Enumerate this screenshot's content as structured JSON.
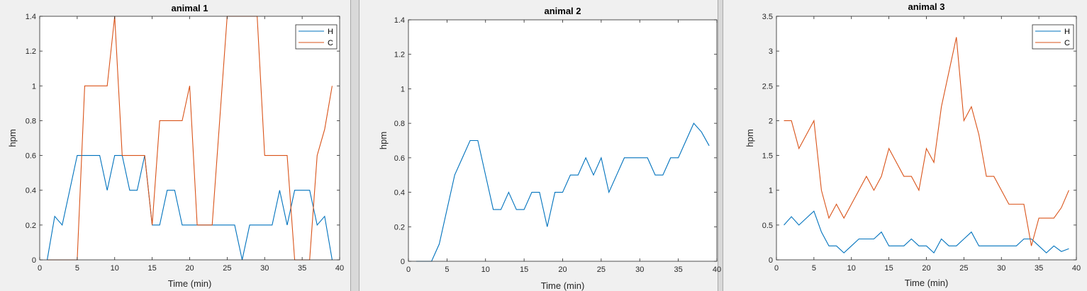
{
  "colors": {
    "H": "#0072bd",
    "C": "#d95319",
    "axis": "#262626",
    "figure_bg": "#f0f0f0",
    "axes_bg": "#ffffff"
  },
  "chart_data": [
    {
      "type": "line",
      "title": "animal 1",
      "xlabel": "Time (min)",
      "ylabel": "hpm",
      "xlim": [
        0,
        40
      ],
      "ylim": [
        0,
        1.4
      ],
      "xticks": [
        "0",
        "5",
        "10",
        "15",
        "20",
        "25",
        "30",
        "35",
        "40"
      ],
      "yticks": [
        "0",
        "0.2",
        "0.4",
        "0.6",
        "0.8",
        "1",
        "1.2",
        "1.4"
      ],
      "grid": false,
      "legend": "top-right",
      "series": [
        {
          "name": "H",
          "color": "#0072bd",
          "x": [
            1,
            2,
            3,
            4,
            5,
            6,
            7,
            8,
            9,
            10,
            11,
            12,
            13,
            14,
            15,
            16,
            17,
            18,
            19,
            20,
            21,
            22,
            23,
            24,
            25,
            26,
            27,
            28,
            29,
            30,
            31,
            32,
            33,
            34,
            35,
            36,
            37,
            38,
            39
          ],
          "values": [
            0,
            0.25,
            0.2,
            0.4,
            0.6,
            0.6,
            0.6,
            0.6,
            0.4,
            0.6,
            0.6,
            0.4,
            0.4,
            0.6,
            0.2,
            0.2,
            0.4,
            0.4,
            0.2,
            0.2,
            0.2,
            0.2,
            0.2,
            0.2,
            0.2,
            0.2,
            0,
            0.2,
            0.2,
            0.2,
            0.2,
            0.4,
            0.2,
            0.4,
            0.4,
            0.4,
            0.2,
            0.25,
            0
          ]
        },
        {
          "name": "C",
          "color": "#d95319",
          "x": [
            1,
            2,
            3,
            4,
            5,
            6,
            7,
            8,
            9,
            10,
            11,
            12,
            13,
            14,
            15,
            16,
            17,
            18,
            19,
            20,
            21,
            22,
            23,
            24,
            25,
            26,
            27,
            28,
            29,
            30,
            31,
            32,
            33,
            34,
            35,
            36,
            37,
            38,
            39
          ],
          "values": [
            0,
            0,
            0,
            0,
            0,
            1,
            1,
            1,
            1,
            1.4,
            0.6,
            0.6,
            0.6,
            0.6,
            0.2,
            0.8,
            0.8,
            0.8,
            0.8,
            1,
            0.2,
            0.2,
            0.2,
            0.8,
            1.4,
            1.4,
            1.4,
            1.4,
            1.4,
            0.6,
            0.6,
            0.6,
            0.6,
            0,
            0,
            0,
            0.6,
            0.75,
            1
          ]
        }
      ]
    },
    {
      "type": "line",
      "title": "animal 2",
      "xlabel": "Time (min)",
      "ylabel": "hpm",
      "xlim": [
        0,
        40
      ],
      "ylim": [
        0,
        1.4
      ],
      "xticks": [
        "0",
        "5",
        "10",
        "15",
        "20",
        "25",
        "30",
        "35",
        "40"
      ],
      "yticks": [
        "0",
        "0.2",
        "0.4",
        "0.6",
        "0.8",
        "1",
        "1.2",
        "1.4"
      ],
      "grid": false,
      "legend": "none",
      "series": [
        {
          "color": "#0072bd",
          "x": [
            1,
            2,
            3,
            4,
            5,
            6,
            7,
            8,
            9,
            10,
            11,
            12,
            13,
            14,
            15,
            16,
            17,
            18,
            19,
            20,
            21,
            22,
            23,
            24,
            25,
            26,
            27,
            28,
            29,
            30,
            31,
            32,
            33,
            34,
            35,
            36,
            37,
            38,
            39
          ],
          "values": [
            0,
            0,
            0,
            0.1,
            0.3,
            0.5,
            0.6,
            0.7,
            0.7,
            0.5,
            0.3,
            0.3,
            0.4,
            0.3,
            0.3,
            0.4,
            0.4,
            0.2,
            0.4,
            0.4,
            0.5,
            0.5,
            0.6,
            0.5,
            0.6,
            0.4,
            0.5,
            0.6,
            0.6,
            0.6,
            0.6,
            0.5,
            0.5,
            0.6,
            0.6,
            0.7,
            0.8,
            0.75,
            0.67
          ]
        }
      ]
    },
    {
      "type": "line",
      "title": "animal 3",
      "xlabel": "Time (min)",
      "ylabel": "hpm",
      "xlim": [
        0,
        40
      ],
      "ylim": [
        0,
        3.5
      ],
      "xticks": [
        "0",
        "5",
        "10",
        "15",
        "20",
        "25",
        "30",
        "35",
        "40"
      ],
      "yticks": [
        "0",
        "0.5",
        "1",
        "1.5",
        "2",
        "2.5",
        "3",
        "3.5"
      ],
      "grid": false,
      "legend": "top-right",
      "series": [
        {
          "name": "H",
          "color": "#0072bd",
          "x": [
            1,
            2,
            3,
            4,
            5,
            6,
            7,
            8,
            9,
            10,
            11,
            12,
            13,
            14,
            15,
            16,
            17,
            18,
            19,
            20,
            21,
            22,
            23,
            24,
            25,
            26,
            27,
            28,
            29,
            30,
            31,
            32,
            33,
            34,
            35,
            36,
            37,
            38,
            39
          ],
          "values": [
            0.5,
            0.62,
            0.5,
            0.6,
            0.7,
            0.4,
            0.2,
            0.2,
            0.1,
            0.2,
            0.3,
            0.3,
            0.3,
            0.4,
            0.2,
            0.2,
            0.2,
            0.3,
            0.2,
            0.2,
            0.1,
            0.3,
            0.2,
            0.2,
            0.3,
            0.4,
            0.2,
            0.2,
            0.2,
            0.2,
            0.2,
            0.2,
            0.3,
            0.3,
            0.2,
            0.1,
            0.2,
            0.12,
            0.16
          ]
        },
        {
          "name": "C",
          "color": "#d95319",
          "x": [
            1,
            2,
            3,
            4,
            5,
            6,
            7,
            8,
            9,
            10,
            11,
            12,
            13,
            14,
            15,
            16,
            17,
            18,
            19,
            20,
            21,
            22,
            23,
            24,
            25,
            26,
            27,
            28,
            29,
            30,
            31,
            32,
            33,
            34,
            35,
            36,
            37,
            38,
            39
          ],
          "values": [
            2,
            2,
            1.6,
            1.8,
            2,
            1,
            0.6,
            0.8,
            0.6,
            0.8,
            1,
            1.2,
            1,
            1.2,
            1.6,
            1.4,
            1.2,
            1.2,
            1,
            1.6,
            1.4,
            2.2,
            2.7,
            3.2,
            2,
            2.2,
            1.8,
            1.2,
            1.2,
            1,
            0.8,
            0.8,
            0.8,
            0.2,
            0.6,
            0.6,
            0.6,
            0.75,
            1
          ]
        }
      ]
    }
  ]
}
